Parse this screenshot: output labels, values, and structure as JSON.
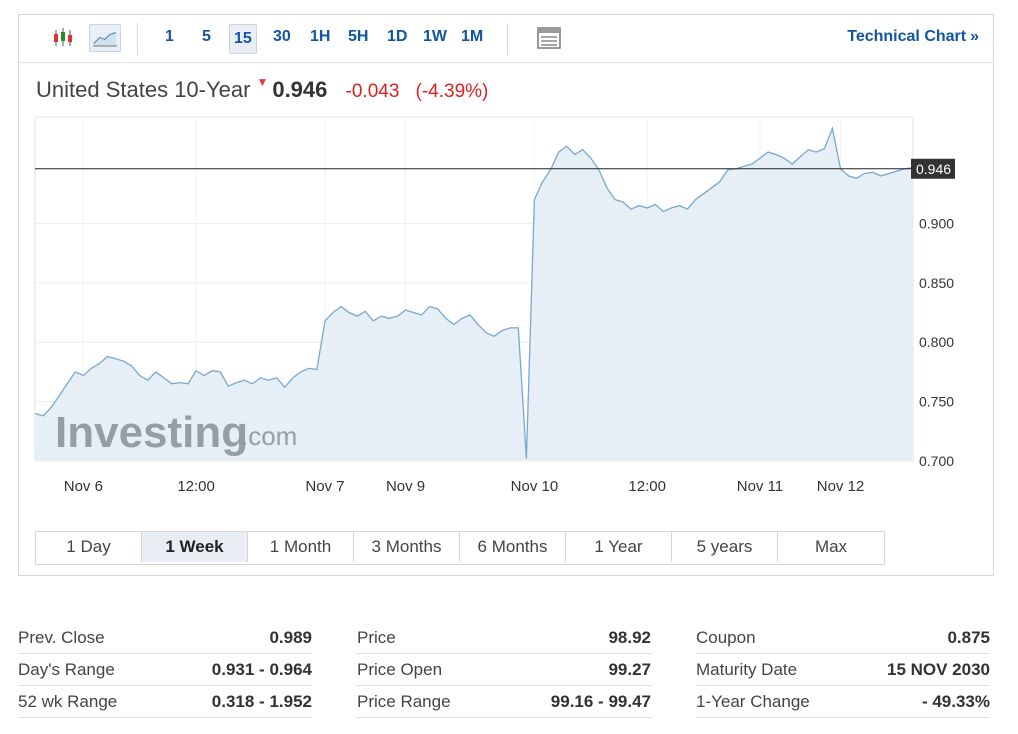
{
  "toolbar": {
    "candles_icon": "candlestick-icon",
    "area_icon": "area-chart-icon",
    "intervals": [
      "1",
      "5",
      "15",
      "30",
      "1H",
      "5H",
      "1D",
      "1W",
      "1M"
    ],
    "active_interval": "15",
    "table_icon": "table-icon",
    "technical_chart_label": "Technical Chart",
    "technical_chart_arrow": "»"
  },
  "header": {
    "instrument": "United States 10-Year",
    "last": "0.946",
    "change": "-0.043",
    "change_pct": "(-4.39%)"
  },
  "watermark": {
    "brand": "Investing",
    "suffix": ".com"
  },
  "chart_data": {
    "type": "area",
    "current_label": "0.946",
    "current_value": 0.946,
    "ylim": [
      0.7,
      0.98
    ],
    "y_ticks": [
      "0.900",
      "0.850",
      "0.800",
      "0.750",
      "0.700"
    ],
    "y_tick_values": [
      0.9,
      0.85,
      0.8,
      0.75,
      0.7
    ],
    "x_ticks": [
      "Nov 6",
      "12:00",
      "Nov 7",
      "Nov 9",
      "Nov 10",
      "12:00",
      "Nov 11",
      "Nov 12"
    ],
    "x_tick_index": [
      6,
      20,
      36,
      46,
      62,
      76,
      90,
      100
    ],
    "colors": {
      "line": "#7aa7d0",
      "fill": "#e7eff6",
      "price_line": "#222222",
      "badge": "#333333"
    },
    "values": [
      0.74,
      0.738,
      0.745,
      0.755,
      0.765,
      0.775,
      0.772,
      0.778,
      0.782,
      0.788,
      0.786,
      0.784,
      0.78,
      0.772,
      0.768,
      0.775,
      0.77,
      0.765,
      0.766,
      0.765,
      0.776,
      0.772,
      0.776,
      0.775,
      0.763,
      0.766,
      0.768,
      0.765,
      0.77,
      0.768,
      0.77,
      0.762,
      0.77,
      0.775,
      0.778,
      0.777,
      0.818,
      0.825,
      0.83,
      0.825,
      0.822,
      0.826,
      0.818,
      0.822,
      0.82,
      0.822,
      0.827,
      0.825,
      0.823,
      0.83,
      0.828,
      0.82,
      0.815,
      0.82,
      0.823,
      0.815,
      0.808,
      0.805,
      0.81,
      0.812,
      0.812,
      0.702,
      0.92,
      0.935,
      0.945,
      0.96,
      0.965,
      0.958,
      0.962,
      0.955,
      0.945,
      0.93,
      0.92,
      0.918,
      0.912,
      0.915,
      0.913,
      0.916,
      0.91,
      0.913,
      0.915,
      0.912,
      0.92,
      0.925,
      0.93,
      0.935,
      0.945,
      0.946,
      0.948,
      0.95,
      0.955,
      0.96,
      0.958,
      0.955,
      0.95,
      0.956,
      0.962,
      0.96,
      0.963,
      0.98,
      0.946,
      0.94,
      0.938,
      0.942,
      0.943,
      0.94,
      0.942,
      0.944,
      0.946,
      0.947
    ]
  },
  "ranges": {
    "items": [
      "1 Day",
      "1 Week",
      "1 Month",
      "3 Months",
      "6 Months",
      "1 Year",
      "5 years",
      "Max"
    ],
    "active": "1 Week"
  },
  "stats": {
    "col1": [
      {
        "label": "Prev. Close",
        "value": "0.989"
      },
      {
        "label": "Day's Range",
        "value": "0.931 - 0.964"
      },
      {
        "label": "52 wk Range",
        "value": "0.318 - 1.952"
      }
    ],
    "col2": [
      {
        "label": "Price",
        "value": "98.92"
      },
      {
        "label": "Price Open",
        "value": "99.27"
      },
      {
        "label": "Price Range",
        "value": "99.16 - 99.47"
      }
    ],
    "col3": [
      {
        "label": "Coupon",
        "value": "0.875"
      },
      {
        "label": "Maturity Date",
        "value": "15 NOV 2030"
      },
      {
        "label": "1-Year Change",
        "value": "- 49.33%"
      }
    ]
  }
}
